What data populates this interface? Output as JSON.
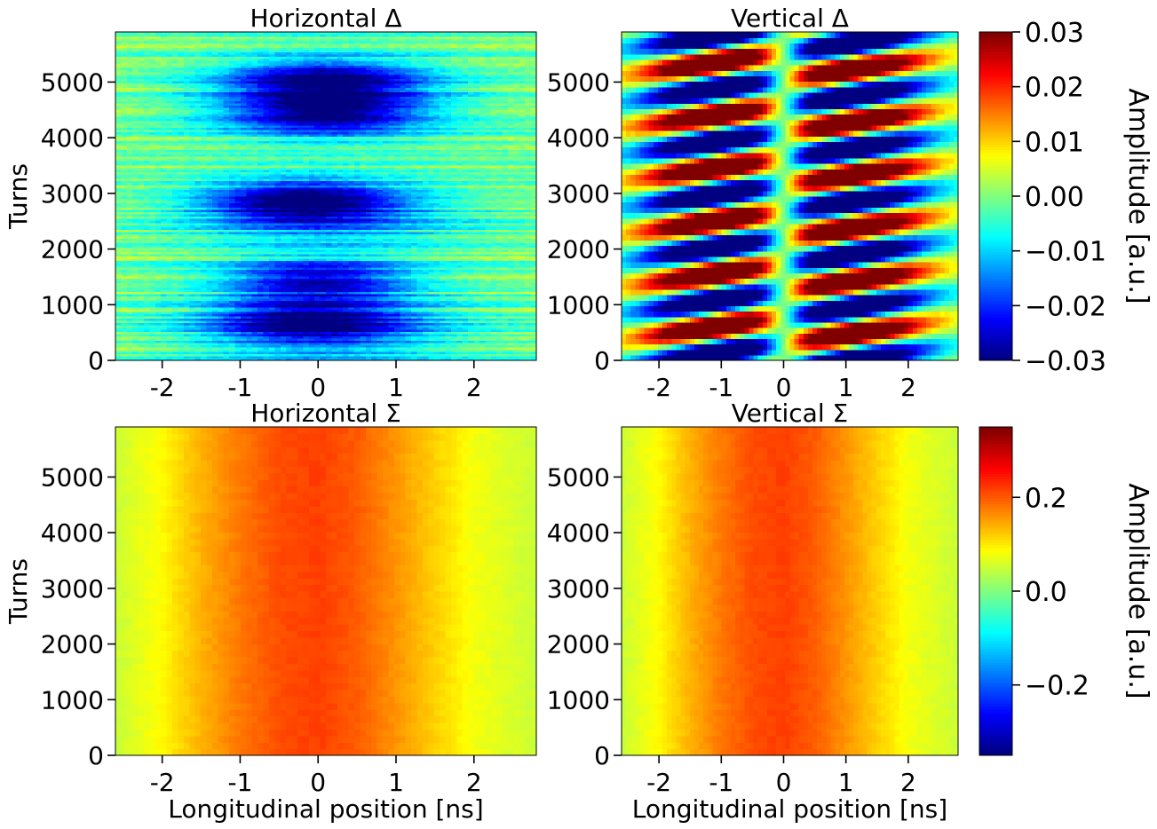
{
  "chart_data": [
    {
      "type": "heatmap",
      "title": "Horizontal Δ",
      "xlabel": "",
      "ylabel": "Turns",
      "xlim": [
        -2.6,
        2.8
      ],
      "ylim": [
        0,
        5900
      ],
      "x_ticks": [
        -2,
        -1,
        0,
        1,
        2
      ],
      "x_tick_labels": [
        "-2",
        "-1",
        "0",
        "1",
        "2"
      ],
      "y_ticks": [
        0,
        1000,
        2000,
        3000,
        4000,
        5000
      ],
      "y_tick_labels": [
        "0",
        "1000",
        "2000",
        "3000",
        "4000",
        "5000"
      ],
      "colormap": "jet",
      "clim": [
        -0.03,
        0.03
      ],
      "dominant_features": [
        {
          "turns": 700,
          "center_ns": -0.1,
          "amplitude": -0.022
        },
        {
          "turns": 1450,
          "center_ns": 0.0,
          "amplitude": -0.024
        },
        {
          "turns": 2850,
          "center_ns": -0.2,
          "amplitude": -0.026
        },
        {
          "turns": 4450,
          "center_ns": 0.1,
          "amplitude": -0.022
        },
        {
          "turns": 5050,
          "center_ns": 0.1,
          "amplitude": -0.023
        }
      ]
    },
    {
      "type": "heatmap",
      "title": "Vertical Δ",
      "xlabel": "",
      "ylabel": "",
      "xlim": [
        -2.6,
        2.8
      ],
      "ylim": [
        0,
        5900
      ],
      "x_ticks": [
        -2,
        -1,
        0,
        1,
        2
      ],
      "x_tick_labels": [
        "-2",
        "-1",
        "0",
        "1",
        "2"
      ],
      "y_ticks": [
        0,
        1000,
        2000,
        3000,
        4000,
        5000
      ],
      "y_tick_labels": [
        "0",
        "1000",
        "2000",
        "3000",
        "4000",
        "5000"
      ],
      "colormap": "jet",
      "clim": [
        -0.03,
        0.03
      ],
      "oscillation_period_turns": 950,
      "peak_amplitude": 0.03
    },
    {
      "type": "heatmap",
      "title": "Horizontal Σ",
      "xlabel": "Longitudinal position [ns]",
      "ylabel": "Turns",
      "xlim": [
        -2.6,
        2.8
      ],
      "ylim": [
        0,
        5900
      ],
      "x_ticks": [
        -2,
        -1,
        0,
        1,
        2
      ],
      "x_tick_labels": [
        "-2",
        "-1",
        "0",
        "1",
        "2"
      ],
      "y_ticks": [
        0,
        1000,
        2000,
        3000,
        4000,
        5000
      ],
      "y_tick_labels": [
        "0",
        "1000",
        "2000",
        "3000",
        "4000",
        "5000"
      ],
      "colormap": "jet",
      "clim": [
        -0.35,
        0.35
      ],
      "profile": [
        {
          "ns": -2.6,
          "value": 0.05
        },
        {
          "ns": -2.0,
          "value": 0.09
        },
        {
          "ns": -1.5,
          "value": 0.14
        },
        {
          "ns": -1.0,
          "value": 0.18
        },
        {
          "ns": -0.5,
          "value": 0.21
        },
        {
          "ns": 0.0,
          "value": 0.22
        },
        {
          "ns": 0.5,
          "value": 0.2
        },
        {
          "ns": 1.0,
          "value": 0.16
        },
        {
          "ns": 1.5,
          "value": 0.12
        },
        {
          "ns": 2.0,
          "value": 0.08
        },
        {
          "ns": 2.8,
          "value": 0.05
        }
      ]
    },
    {
      "type": "heatmap",
      "title": "Vertical Σ",
      "xlabel": "Longitudinal position [ns]",
      "ylabel": "",
      "xlim": [
        -2.6,
        2.8
      ],
      "ylim": [
        0,
        5900
      ],
      "x_ticks": [
        -2,
        -1,
        0,
        1,
        2
      ],
      "x_tick_labels": [
        "-2",
        "-1",
        "0",
        "1",
        "2"
      ],
      "y_ticks": [
        0,
        1000,
        2000,
        3000,
        4000,
        5000
      ],
      "y_tick_labels": [
        "0",
        "1000",
        "2000",
        "3000",
        "4000",
        "5000"
      ],
      "colormap": "jet",
      "clim": [
        -0.35,
        0.35
      ],
      "profile": [
        {
          "ns": -2.6,
          "value": 0.05
        },
        {
          "ns": -2.0,
          "value": 0.09
        },
        {
          "ns": -1.5,
          "value": 0.14
        },
        {
          "ns": -1.0,
          "value": 0.18
        },
        {
          "ns": -0.5,
          "value": 0.21
        },
        {
          "ns": 0.0,
          "value": 0.22
        },
        {
          "ns": 0.5,
          "value": 0.2
        },
        {
          "ns": 1.0,
          "value": 0.16
        },
        {
          "ns": 1.5,
          "value": 0.12
        },
        {
          "ns": 2.0,
          "value": 0.08
        },
        {
          "ns": 2.8,
          "value": 0.05
        }
      ]
    }
  ],
  "colorbars": [
    {
      "label": "Amplitude [a.u.]",
      "range": [
        -0.03,
        0.03
      ],
      "ticks": [
        -0.03,
        -0.02,
        -0.01,
        0.0,
        0.01,
        0.02,
        0.03
      ],
      "tick_labels": [
        "−0.03",
        "−0.02",
        "−0.01",
        "0.00",
        "0.01",
        "0.02",
        "0.03"
      ]
    },
    {
      "label": "Amplitude [a.u.]",
      "range": [
        -0.35,
        0.35
      ],
      "ticks": [
        -0.2,
        0.0,
        0.2
      ],
      "tick_labels": [
        "−0.2",
        "0.0",
        "0.2"
      ]
    }
  ]
}
